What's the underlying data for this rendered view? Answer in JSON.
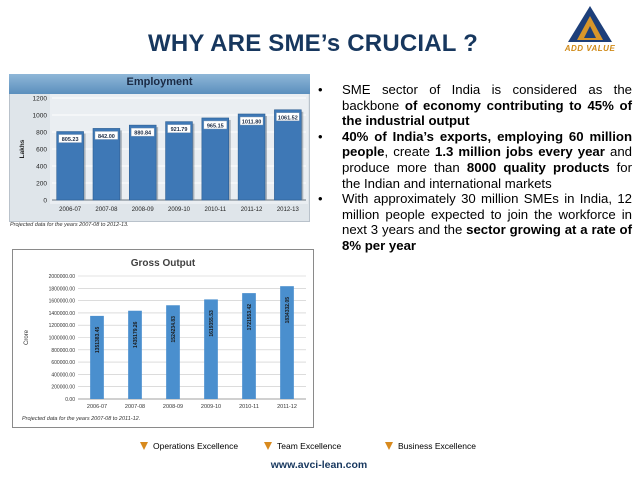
{
  "slide": {
    "title": "WHY ARE SME’s CRUCIAL ?",
    "logo_text": "ADD VALUE"
  },
  "bullets": [
    {
      "segments": [
        {
          "text": "SME sector of India is considered as the backbone ",
          "bold": false
        },
        {
          "text": "of economy contributing to 45% of the industrial output",
          "bold": true
        }
      ]
    },
    {
      "segments": [
        {
          "text": "40% of India’s exports, employing 60 million people",
          "bold": true
        },
        {
          "text": ", create ",
          "bold": false
        },
        {
          "text": "1.3 million jobs every year",
          "bold": true
        },
        {
          "text": " and produce more than ",
          "bold": false
        },
        {
          "text": "8000 quality products",
          "bold": true
        },
        {
          "text": " for the Indian and international markets",
          "bold": false
        }
      ]
    },
    {
      "segments": [
        {
          "text": "With approximately 30 million SMEs in India, 12 million people expected to join the workforce in next 3 years and the ",
          "bold": false
        },
        {
          "text": "sector growing at a rate of 8% per year",
          "bold": true
        }
      ]
    }
  ],
  "footer": {
    "items": [
      "Operations Excellence",
      "Team Excellence",
      "Business Excellence"
    ],
    "url": "www.avci-lean.com"
  },
  "colors": {
    "title": "#17375e",
    "accent": "#d88a1e",
    "emp_bar": "#3e78b6",
    "go_bar": "#4a8fce"
  },
  "chart_data": [
    {
      "type": "bar",
      "title": "Employment",
      "ylabel": "Lakhs",
      "xlabel": "",
      "categories": [
        "2006-07",
        "2007-08",
        "2008-09",
        "2009-10",
        "2010-11",
        "2011-12",
        "2012-13"
      ],
      "values": [
        805.23,
        842.0,
        880.84,
        921.79,
        965.15,
        1011.8,
        1061.52
      ],
      "value_labels": [
        "805.23",
        "842.00",
        "880.84",
        "921.79",
        "965.15",
        "1011.80",
        "1061.52"
      ],
      "yticks": [
        "0",
        "200",
        "400",
        "600",
        "800",
        "1000",
        "1200"
      ],
      "ylim": [
        0,
        1200
      ],
      "grid": true,
      "legend": "none",
      "footnote": "Projected data for the years 2007-08 to 2012-13."
    },
    {
      "type": "bar",
      "title": "Gross Output",
      "ylabel": "Crore",
      "xlabel": "",
      "categories": [
        "2006-07",
        "2007-08",
        "2008-09",
        "2009-10",
        "2010-11",
        "2011-12"
      ],
      "values": [
        1351383.45,
        1435179.26,
        1524234.83,
        1619355.53,
        1721553.42,
        1834332.05
      ],
      "value_labels": [
        "1351383.45",
        "1435179.26",
        "1524234.83",
        "1619355.53",
        "1721553.42",
        "1834332.05"
      ],
      "yticks": [
        "0.00",
        "200000.00",
        "400000.00",
        "600000.00",
        "800000.00",
        "1000000.00",
        "1200000.00",
        "1400000.00",
        "1600000.00",
        "1800000.00",
        "2000000.00"
      ],
      "ylim": [
        0,
        2000000
      ],
      "grid": true,
      "legend": "none",
      "footnote": "Projected data for the years 2007-08 to 2011-12."
    }
  ]
}
